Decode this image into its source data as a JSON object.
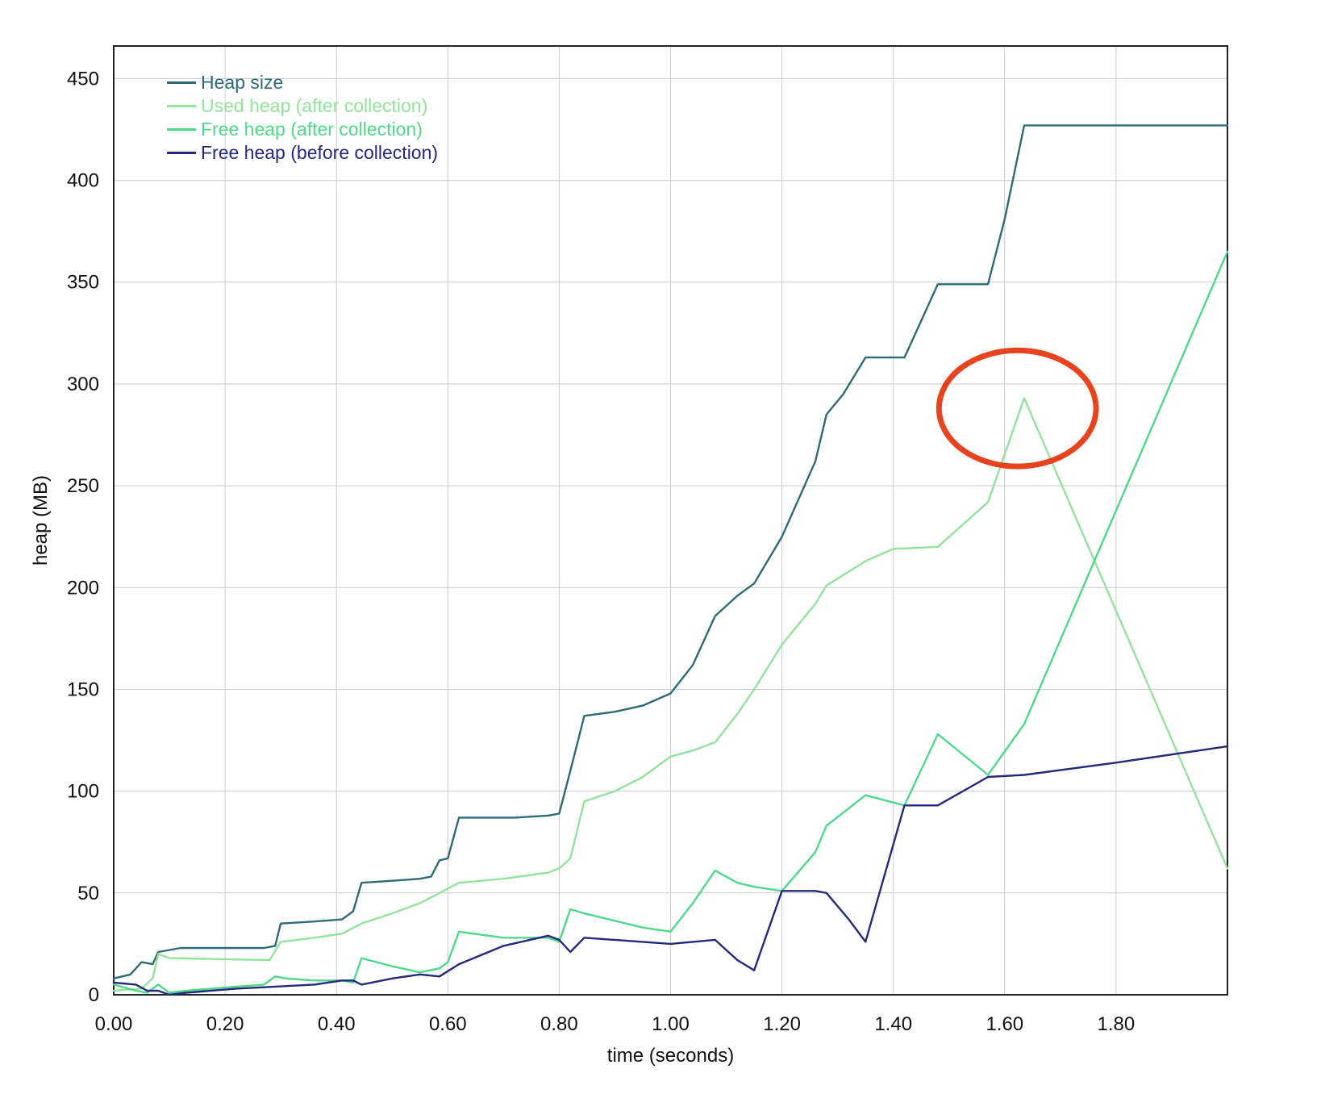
{
  "chart_data": {
    "type": "line",
    "title": "",
    "xlabel": "time (seconds)",
    "ylabel": "heap (MB)",
    "xlim": [
      0,
      2.0
    ],
    "ylim": [
      0,
      466
    ],
    "grid": true,
    "legend_position": "top-left-inside",
    "x_ticks": [
      {
        "v": 0.0,
        "label": "0.00"
      },
      {
        "v": 0.2,
        "label": "0.20"
      },
      {
        "v": 0.4,
        "label": "0.40"
      },
      {
        "v": 0.6,
        "label": "0.60"
      },
      {
        "v": 0.8,
        "label": "0.80"
      },
      {
        "v": 1.0,
        "label": "1.00"
      },
      {
        "v": 1.2,
        "label": "1.20"
      },
      {
        "v": 1.4,
        "label": "1.40"
      },
      {
        "v": 1.6,
        "label": "1.60"
      },
      {
        "v": 1.8,
        "label": "1.80"
      }
    ],
    "y_ticks": [
      {
        "v": 0,
        "label": "0"
      },
      {
        "v": 50,
        "label": "50"
      },
      {
        "v": 100,
        "label": "100"
      },
      {
        "v": 150,
        "label": "150"
      },
      {
        "v": 200,
        "label": "200"
      },
      {
        "v": 250,
        "label": "250"
      },
      {
        "v": 300,
        "label": "300"
      },
      {
        "v": 350,
        "label": "350"
      },
      {
        "v": 400,
        "label": "400"
      },
      {
        "v": 450,
        "label": "450"
      }
    ],
    "series": [
      {
        "name": "Heap size",
        "color": "#2e6b78",
        "points": [
          [
            0,
            8
          ],
          [
            0.03,
            10
          ],
          [
            0.05,
            16
          ],
          [
            0.07,
            15
          ],
          [
            0.08,
            21
          ],
          [
            0.12,
            23
          ],
          [
            0.27,
            23
          ],
          [
            0.29,
            24
          ],
          [
            0.3,
            35
          ],
          [
            0.36,
            36
          ],
          [
            0.41,
            37
          ],
          [
            0.43,
            41
          ],
          [
            0.445,
            55
          ],
          [
            0.5,
            56
          ],
          [
            0.55,
            57
          ],
          [
            0.57,
            58
          ],
          [
            0.585,
            66
          ],
          [
            0.6,
            67
          ],
          [
            0.62,
            87
          ],
          [
            0.72,
            87
          ],
          [
            0.78,
            88
          ],
          [
            0.8,
            89
          ],
          [
            0.82,
            110
          ],
          [
            0.845,
            137
          ],
          [
            0.9,
            139
          ],
          [
            0.95,
            142
          ],
          [
            1.0,
            148
          ],
          [
            1.04,
            162
          ],
          [
            1.08,
            186
          ],
          [
            1.12,
            196
          ],
          [
            1.15,
            202
          ],
          [
            1.2,
            225
          ],
          [
            1.26,
            262
          ],
          [
            1.28,
            285
          ],
          [
            1.31,
            295
          ],
          [
            1.35,
            313
          ],
          [
            1.42,
            313
          ],
          [
            1.45,
            331
          ],
          [
            1.48,
            349
          ],
          [
            1.57,
            349
          ],
          [
            1.6,
            381
          ],
          [
            1.635,
            427
          ],
          [
            2.0,
            427
          ]
        ]
      },
      {
        "name": "Used heap (after collection)",
        "color": "#93e39b",
        "points": [
          [
            0,
            2
          ],
          [
            0.05,
            3
          ],
          [
            0.07,
            8
          ],
          [
            0.08,
            20
          ],
          [
            0.1,
            18
          ],
          [
            0.28,
            17
          ],
          [
            0.3,
            26
          ],
          [
            0.36,
            28
          ],
          [
            0.41,
            30
          ],
          [
            0.445,
            35
          ],
          [
            0.5,
            40
          ],
          [
            0.55,
            45
          ],
          [
            0.585,
            50
          ],
          [
            0.62,
            55
          ],
          [
            0.7,
            57
          ],
          [
            0.78,
            60
          ],
          [
            0.8,
            62
          ],
          [
            0.82,
            67
          ],
          [
            0.845,
            95
          ],
          [
            0.9,
            100
          ],
          [
            0.95,
            107
          ],
          [
            1.0,
            117
          ],
          [
            1.04,
            120
          ],
          [
            1.08,
            124
          ],
          [
            1.12,
            138
          ],
          [
            1.15,
            150
          ],
          [
            1.2,
            172
          ],
          [
            1.26,
            192
          ],
          [
            1.28,
            201
          ],
          [
            1.35,
            213
          ],
          [
            1.4,
            219
          ],
          [
            1.48,
            220
          ],
          [
            1.57,
            242
          ],
          [
            1.635,
            293
          ],
          [
            2.0,
            62
          ]
        ]
      },
      {
        "name": "Free heap (after collection)",
        "color": "#4fd88a",
        "points": [
          [
            0,
            5
          ],
          [
            0.04,
            2
          ],
          [
            0.06,
            1
          ],
          [
            0.08,
            5
          ],
          [
            0.1,
            1
          ],
          [
            0.13,
            2
          ],
          [
            0.22,
            4
          ],
          [
            0.27,
            5
          ],
          [
            0.29,
            9
          ],
          [
            0.31,
            8
          ],
          [
            0.36,
            7
          ],
          [
            0.41,
            7
          ],
          [
            0.43,
            6
          ],
          [
            0.445,
            18
          ],
          [
            0.5,
            14
          ],
          [
            0.55,
            11
          ],
          [
            0.585,
            13
          ],
          [
            0.6,
            16
          ],
          [
            0.62,
            31
          ],
          [
            0.7,
            28
          ],
          [
            0.78,
            28
          ],
          [
            0.8,
            26
          ],
          [
            0.82,
            42
          ],
          [
            0.845,
            40
          ],
          [
            0.95,
            33
          ],
          [
            1.0,
            31
          ],
          [
            1.04,
            45
          ],
          [
            1.08,
            61
          ],
          [
            1.12,
            55
          ],
          [
            1.15,
            53
          ],
          [
            1.2,
            51
          ],
          [
            1.26,
            70
          ],
          [
            1.28,
            83
          ],
          [
            1.35,
            98
          ],
          [
            1.42,
            93
          ],
          [
            1.48,
            128
          ],
          [
            1.57,
            108
          ],
          [
            1.635,
            133
          ],
          [
            2.0,
            365
          ]
        ]
      },
      {
        "name": "Free heap (before collection)",
        "color": "#24297c",
        "points": [
          [
            0,
            6
          ],
          [
            0.04,
            5
          ],
          [
            0.06,
            2
          ],
          [
            0.08,
            2
          ],
          [
            0.1,
            0
          ],
          [
            0.13,
            1
          ],
          [
            0.22,
            3
          ],
          [
            0.29,
            4
          ],
          [
            0.36,
            5
          ],
          [
            0.41,
            7
          ],
          [
            0.43,
            7
          ],
          [
            0.445,
            5
          ],
          [
            0.5,
            8
          ],
          [
            0.55,
            10
          ],
          [
            0.585,
            9
          ],
          [
            0.62,
            15
          ],
          [
            0.7,
            24
          ],
          [
            0.78,
            29
          ],
          [
            0.8,
            27
          ],
          [
            0.82,
            21
          ],
          [
            0.845,
            28
          ],
          [
            1.0,
            25
          ],
          [
            1.08,
            27
          ],
          [
            1.12,
            17
          ],
          [
            1.15,
            12
          ],
          [
            1.2,
            51
          ],
          [
            1.26,
            51
          ],
          [
            1.28,
            50
          ],
          [
            1.32,
            37
          ],
          [
            1.35,
            26
          ],
          [
            1.42,
            93
          ],
          [
            1.48,
            93
          ],
          [
            1.57,
            107
          ],
          [
            1.635,
            108
          ],
          [
            1.8,
            114
          ],
          [
            2.0,
            122
          ]
        ]
      }
    ],
    "annotations": [
      {
        "type": "ellipse",
        "cx": 1.623,
        "cy": 288,
        "rx": 0.141,
        "ry": 28.5,
        "color": "#e8431f",
        "stroke_width": 7
      }
    ],
    "style": {
      "grid_color": "#cccccc",
      "border_color": "#222222",
      "text_color": "#111111",
      "background": "#ffffff",
      "series_stroke_width": 2.4
    }
  }
}
